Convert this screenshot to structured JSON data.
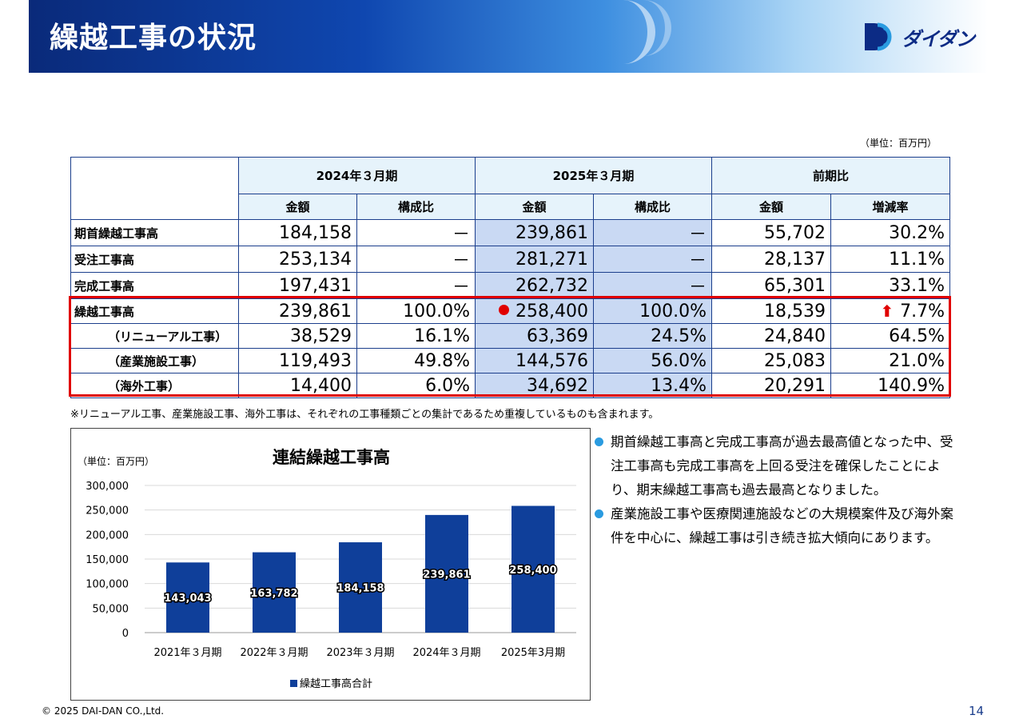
{
  "header": {
    "title": "繰越工事の状況",
    "logo_text": "ダイダン"
  },
  "unit_label": "（単位：百万円）",
  "table": {
    "groups": [
      "2024年３月期",
      "2025年３月期",
      "前期比"
    ],
    "subheaders": [
      "金額",
      "構成比",
      "金額",
      "構成比",
      "金額",
      "増減率"
    ],
    "rows": [
      {
        "label": "期首繰越工事高",
        "c1": "184,158",
        "c2": "－",
        "c3": "239,861",
        "c4": "－",
        "c5": "55,702",
        "c6": "30.2%"
      },
      {
        "label": "受注工事高",
        "c1": "253,134",
        "c2": "－",
        "c3": "281,271",
        "c4": "－",
        "c5": "28,137",
        "c6": "11.1%"
      },
      {
        "label": "完成工事高",
        "c1": "197,431",
        "c2": "－",
        "c3": "262,732",
        "c4": "－",
        "c5": "65,301",
        "c6": "33.1%"
      },
      {
        "label": "繰越工事高",
        "c1": "239,861",
        "c2": "100.0%",
        "c3": "258,400",
        "c4": "100.0%",
        "c5": "18,539",
        "c6": "7.7%"
      },
      {
        "label": "（リニューアル工事）",
        "c1": "38,529",
        "c2": "16.1%",
        "c3": "63,369",
        "c4": "24.5%",
        "c5": "24,840",
        "c6": "64.5%"
      },
      {
        "label": "（産業施設工事）",
        "c1": "119,493",
        "c2": "49.8%",
        "c3": "144,576",
        "c4": "56.0%",
        "c5": "25,083",
        "c6": "21.0%"
      },
      {
        "label": "（海外工事）",
        "c1": "14,400",
        "c2": "6.0%",
        "c3": "34,692",
        "c4": "13.4%",
        "c5": "20,291",
        "c6": "140.9%"
      }
    ]
  },
  "note": "※リニューアル工事、産業施設工事、海外工事は、それぞれの工事種類ごとの集計であるため重複しているものも含まれます。",
  "chart_data": {
    "type": "bar",
    "title": "連結繰越工事高",
    "unit": "（単位：百万円）",
    "categories": [
      "2021年３月期",
      "2022年３月期",
      "2023年３月期",
      "2024年３月期",
      "2025年3月期"
    ],
    "series": [
      {
        "name": "繰越工事高合計",
        "values": [
          143043,
          163782,
          184158,
          239861,
          258400
        ]
      }
    ],
    "data_labels": [
      "143,043",
      "163,782",
      "184,158",
      "239,861",
      "258,400"
    ],
    "ylim": [
      0,
      300000
    ],
    "yticks": [
      "0",
      "50,000",
      "100,000",
      "150,000",
      "200,000",
      "250,000",
      "300,000"
    ],
    "grid": true,
    "legend": "bottom",
    "bar_color": "#0f3f9a"
  },
  "bullets": [
    "期首繰越工事高と完成工事高が過去最高値となった中、受注工事高も完成工事高を上回る受注を確保したことにより、期末繰越工事高も過去最高となりました。",
    "産業施設工事や医療関連施設などの大規模案件及び海外案件を中心に、繰越工事は引き続き拡大傾向にあります。"
  ],
  "footer": {
    "copyright": "© 2025 DAI-DAN CO.,Ltd.",
    "page": "14"
  }
}
